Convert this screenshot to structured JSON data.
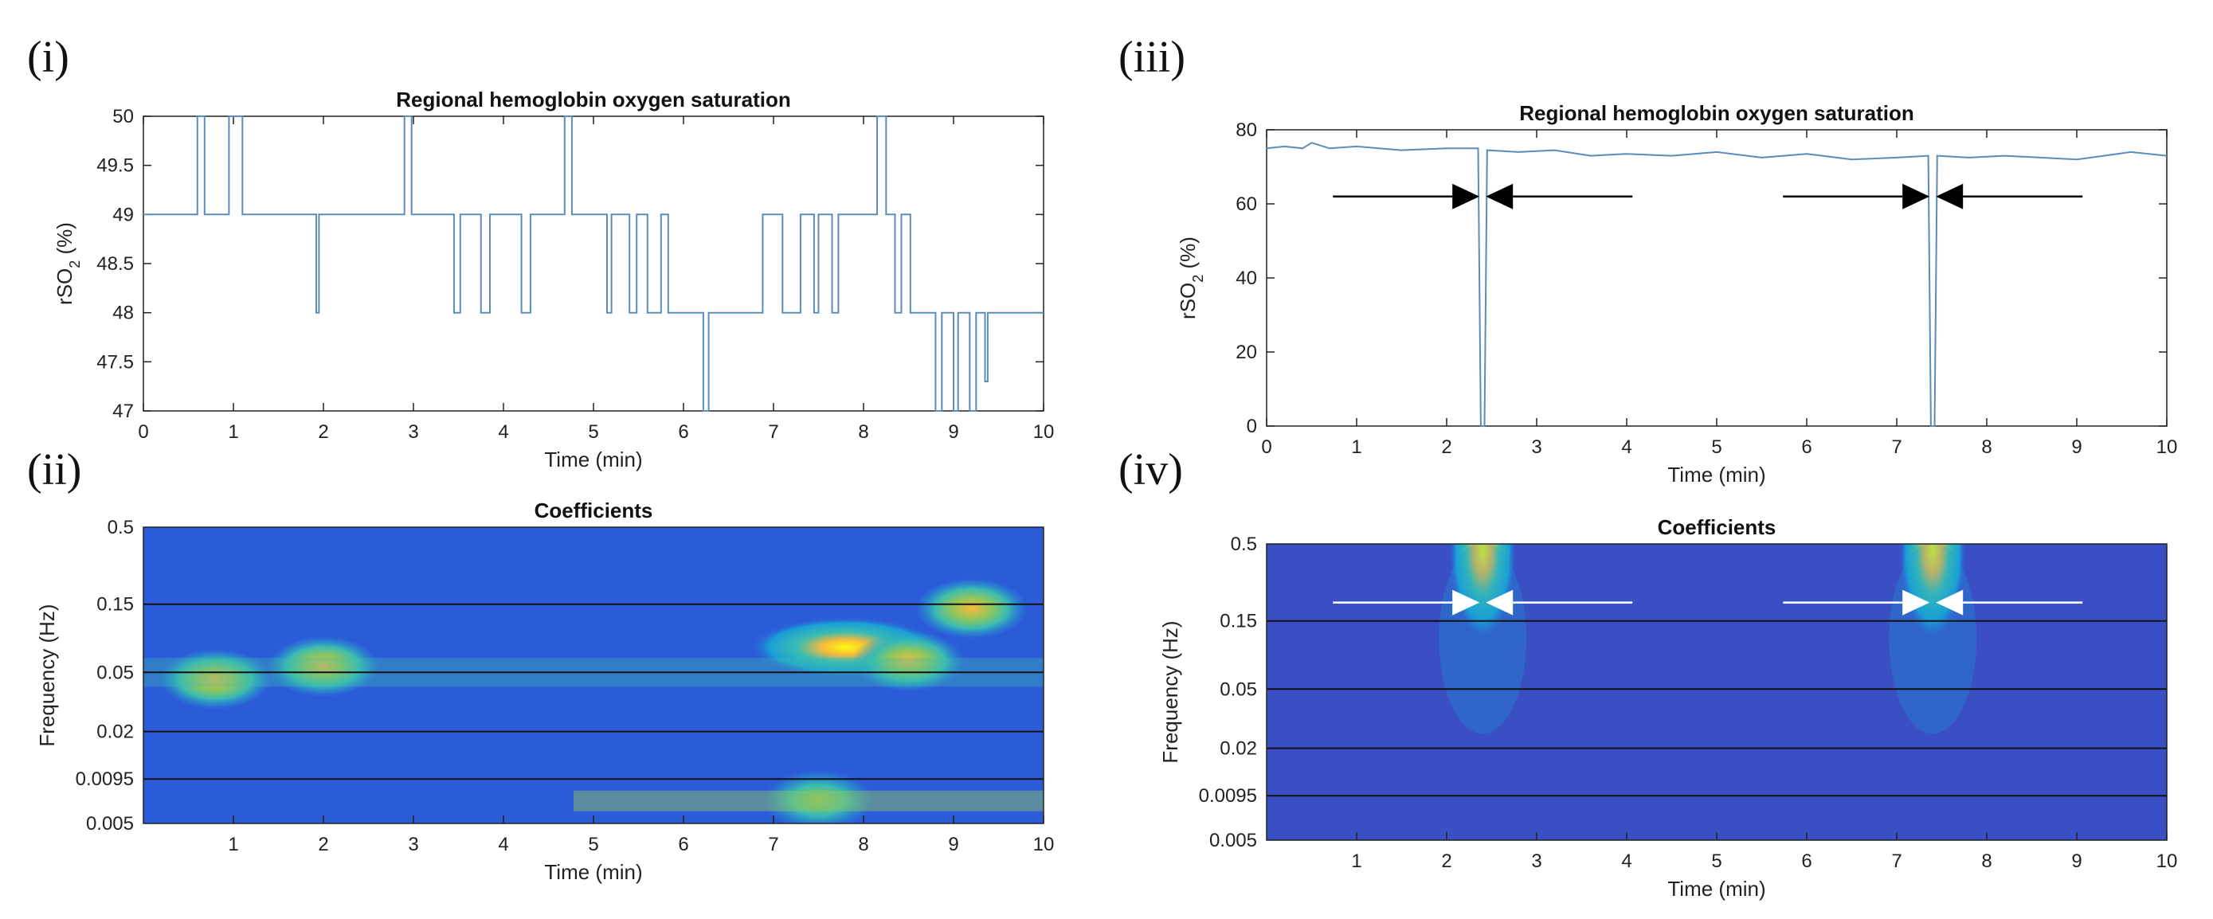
{
  "panels": [
    {
      "id": "i",
      "label": "(i)",
      "chart_data": {
        "type": "line",
        "title": "Regional hemoglobin oxygen saturation",
        "xlabel": "Time (min)",
        "ylabel": "rSO2 (%)",
        "xlim": [
          0,
          10
        ],
        "ylim": [
          47,
          50
        ],
        "xticks": [
          "0",
          "1",
          "2",
          "3",
          "4",
          "5",
          "6",
          "7",
          "8",
          "9",
          "10"
        ],
        "yticks": [
          "47",
          "47.5",
          "48",
          "48.5",
          "49",
          "49.5",
          "50"
        ],
        "series": [
          {
            "name": "rSO2",
            "color": "#5b8db8",
            "x": [
              0,
              0.6,
              0.6,
              0.68,
              0.68,
              0.95,
              0.95,
              1.1,
              1.1,
              1.92,
              1.92,
              1.95,
              1.95,
              2.05,
              2.05,
              2.9,
              2.9,
              2.98,
              2.98,
              3.45,
              3.45,
              3.52,
              3.52,
              3.75,
              3.75,
              3.85,
              3.85,
              4.2,
              4.2,
              4.3,
              4.3,
              4.68,
              4.68,
              4.76,
              4.76,
              5.15,
              5.15,
              5.2,
              5.2,
              5.4,
              5.4,
              5.48,
              5.48,
              5.6,
              5.6,
              5.75,
              5.75,
              5.83,
              5.83,
              6.22,
              6.22,
              6.28,
              6.28,
              6.88,
              6.88,
              7.1,
              7.1,
              7.3,
              7.3,
              7.45,
              7.45,
              7.5,
              7.5,
              7.65,
              7.65,
              7.72,
              7.72,
              7.88,
              7.88,
              8.15,
              8.15,
              8.25,
              8.25,
              8.35,
              8.35,
              8.42,
              8.42,
              8.52,
              8.52,
              8.6,
              8.6,
              8.8,
              8.8,
              8.87,
              8.87,
              9.0,
              9.0,
              9.05,
              9.05,
              9.18,
              9.18,
              9.25,
              9.25,
              9.35,
              9.35,
              9.38,
              9.38,
              10
            ],
            "y": [
              49,
              49,
              50,
              50,
              49,
              49,
              50,
              50,
              49,
              49,
              48,
              48,
              49,
              49,
              49,
              49,
              50,
              50,
              49,
              49,
              48,
              48,
              49,
              49,
              48,
              48,
              49,
              49,
              48,
              48,
              49,
              49,
              50,
              50,
              49,
              49,
              48,
              48,
              49,
              49,
              48,
              48,
              49,
              49,
              48,
              48,
              49,
              49,
              48,
              48,
              47,
              47,
              48,
              48,
              49,
              49,
              48,
              48,
              49,
              49,
              48,
              48,
              49,
              49,
              48,
              48,
              49,
              49,
              49,
              49,
              50,
              50,
              49,
              49,
              48,
              48,
              49,
              49,
              48,
              48,
              48,
              48,
              47,
              47,
              48,
              48,
              47,
              47,
              48,
              48,
              47,
              47,
              48,
              48,
              47.3,
              47.3,
              48,
              48
            ]
          }
        ]
      }
    },
    {
      "id": "ii",
      "label": "(ii)",
      "chart_data": {
        "type": "heatmap",
        "title": "Coefficients",
        "xlabel": "Time (min)",
        "ylabel": "Frequency (Hz)",
        "xlim": [
          0,
          10
        ],
        "xticks": [
          "1",
          "2",
          "3",
          "4",
          "5",
          "6",
          "7",
          "8",
          "9",
          "10"
        ],
        "yticks": [
          "0.5",
          "0.15",
          "0.05",
          "0.02",
          "0.0095",
          "0.005"
        ],
        "band_lines_hz": [
          0.15,
          0.05,
          0.02,
          0.0095
        ],
        "colormap": [
          "#352a87",
          "#2c5bd8",
          "#1a9fd6",
          "#3bbcb0",
          "#92c65a",
          "#f7ba3c",
          "#f9fb0e"
        ],
        "hotspots": [
          {
            "t": 0.8,
            "f": 0.045,
            "level": 0.9
          },
          {
            "t": 2.0,
            "f": 0.055,
            "level": 0.85
          },
          {
            "t": 7.8,
            "f": 0.075,
            "level": 1.0
          },
          {
            "t": 8.5,
            "f": 0.06,
            "level": 0.85
          },
          {
            "t": 9.2,
            "f": 0.14,
            "level": 0.8
          },
          {
            "t": 7.5,
            "f": 0.007,
            "level": 0.6
          }
        ]
      }
    },
    {
      "id": "iii",
      "label": "(iii)",
      "chart_data": {
        "type": "line",
        "title": "Regional hemoglobin oxygen saturation",
        "xlabel": "Time (min)",
        "ylabel": "rSO2 (%)",
        "xlim": [
          0,
          10
        ],
        "ylim": [
          0,
          80
        ],
        "xticks": [
          "0",
          "1",
          "2",
          "3",
          "4",
          "5",
          "6",
          "7",
          "8",
          "9",
          "10"
        ],
        "yticks": [
          "0",
          "20",
          "40",
          "60",
          "80"
        ],
        "series": [
          {
            "name": "rSO2",
            "color": "#5b8db8",
            "x": [
              0,
              0.2,
              0.4,
              0.5,
              0.7,
              1.0,
              1.5,
              2.0,
              2.35,
              2.38,
              2.42,
              2.45,
              2.8,
              3.2,
              3.6,
              4.0,
              4.5,
              5.0,
              5.5,
              6.0,
              6.5,
              7.0,
              7.35,
              7.38,
              7.42,
              7.45,
              7.8,
              8.2,
              8.6,
              9.0,
              9.3,
              9.6,
              10
            ],
            "y": [
              75,
              75.5,
              75,
              76.5,
              75,
              75.5,
              74.5,
              75,
              75,
              0,
              0,
              74.5,
              74,
              74.5,
              73,
              73.5,
              73,
              74,
              72.5,
              73.5,
              72,
              72.5,
              73,
              0,
              0,
              73,
              72.5,
              73,
              72.5,
              72,
              73,
              74,
              73
            ]
          }
        ],
        "annotations": [
          {
            "type": "arrow-pair",
            "t": 2.4,
            "y": 62,
            "color": "#000000"
          },
          {
            "type": "arrow-pair",
            "t": 7.4,
            "y": 62,
            "color": "#000000"
          }
        ]
      }
    },
    {
      "id": "iv",
      "label": "(iv)",
      "chart_data": {
        "type": "heatmap",
        "title": "Coefficients",
        "xlabel": "Time (min)",
        "ylabel": "Frequency (Hz)",
        "xlim": [
          0,
          10
        ],
        "xticks": [
          "1",
          "2",
          "3",
          "4",
          "5",
          "6",
          "7",
          "8",
          "9",
          "10"
        ],
        "yticks": [
          "0.5",
          "0.15",
          "0.05",
          "0.02",
          "0.0095",
          "0.005"
        ],
        "band_lines_hz": [
          0.15,
          0.05,
          0.02,
          0.0095
        ],
        "colormap": [
          "#352a87",
          "#2c5bd8",
          "#1a9fd6",
          "#3bbcb0",
          "#92c65a",
          "#f7ba3c",
          "#f9fb0e"
        ],
        "hotspots": [
          {
            "t": 2.4,
            "f": 0.45,
            "level": 1.0
          },
          {
            "t": 7.4,
            "f": 0.45,
            "level": 1.0
          }
        ],
        "annotations": [
          {
            "type": "arrow-pair",
            "t": 2.4,
            "f": 0.2,
            "color": "#ffffff"
          },
          {
            "type": "arrow-pair",
            "t": 7.4,
            "f": 0.2,
            "color": "#ffffff"
          }
        ]
      }
    }
  ]
}
